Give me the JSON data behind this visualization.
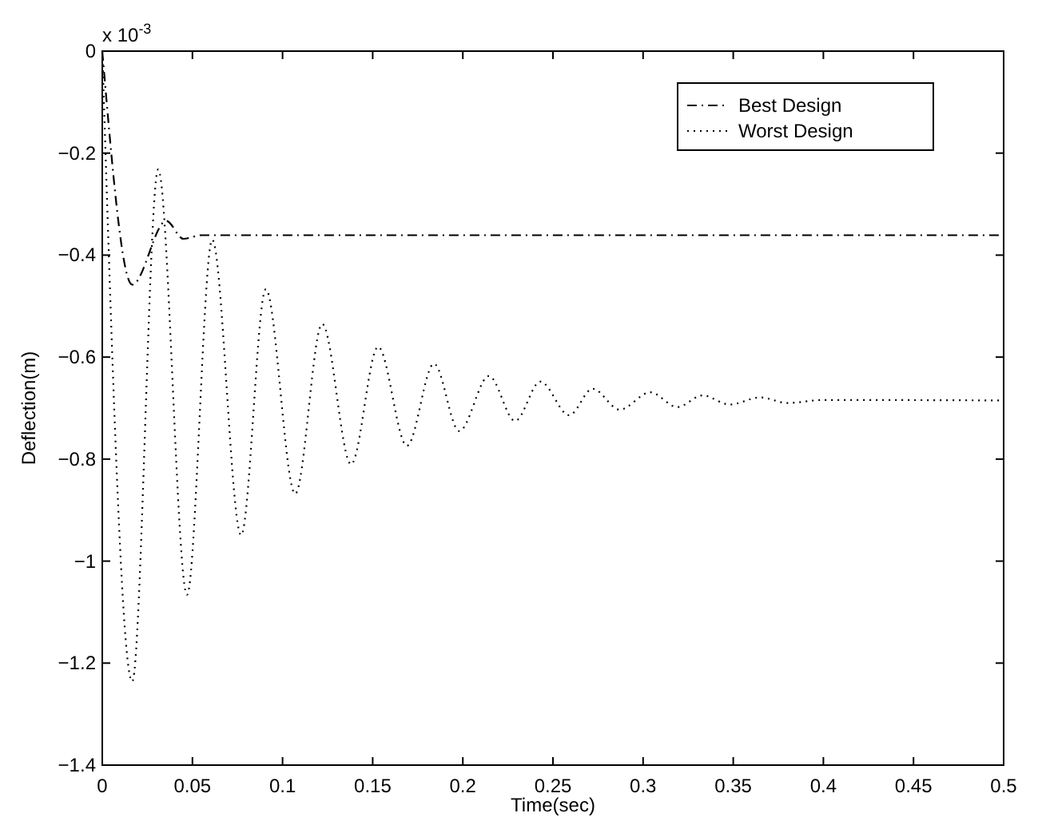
{
  "chart_data": {
    "type": "line",
    "xlabel": "Time(sec)",
    "ylabel": "Deflection(m)",
    "annotations": [
      "x 10$^{-3}$"
    ],
    "xlim": [
      0,
      0.5
    ],
    "xticks": [
      0,
      0.05,
      0.1,
      0.15,
      0.2,
      0.25,
      0.3,
      0.35,
      0.4,
      0.45,
      0.5
    ],
    "ylim": [
      -1.4,
      0
    ],
    "yticks": [
      -1.4,
      -1.2,
      -1,
      -0.8,
      -0.6,
      -0.4,
      -0.2,
      0
    ],
    "grid": false,
    "legend": "top right",
    "series": [
      {
        "name": "Best Design",
        "color": "#000000",
        "line_style": "dashdot",
        "x": [
          0,
          0.0166,
          0.0355,
          0.045,
          0.055,
          0.5
        ],
        "values": [
          0,
          -0.458,
          -0.333,
          -0.368,
          -0.361,
          -0.361
        ]
      },
      {
        "name": "Worst Design",
        "color": "#000000",
        "line_style": "dotted",
        "x": [
          0,
          0.0166,
          0.031,
          0.047,
          0.061,
          0.077,
          0.0907,
          0.107,
          0.122,
          0.138,
          0.153,
          0.169,
          0.184,
          0.198,
          0.2145,
          0.229,
          0.243,
          0.259,
          0.272,
          0.287,
          0.304,
          0.319,
          0.333,
          0.348,
          0.365,
          0.38,
          0.4,
          0.5
        ],
        "values": [
          0,
          -1.236,
          -0.232,
          -1.066,
          -0.37,
          -0.949,
          -0.467,
          -0.868,
          -0.535,
          -0.81,
          -0.58,
          -0.774,
          -0.613,
          -0.745,
          -0.637,
          -0.725,
          -0.648,
          -0.714,
          -0.662,
          -0.703,
          -0.669,
          -0.698,
          -0.675,
          -0.693,
          -0.679,
          -0.69,
          -0.684,
          -0.685
        ]
      }
    ]
  }
}
